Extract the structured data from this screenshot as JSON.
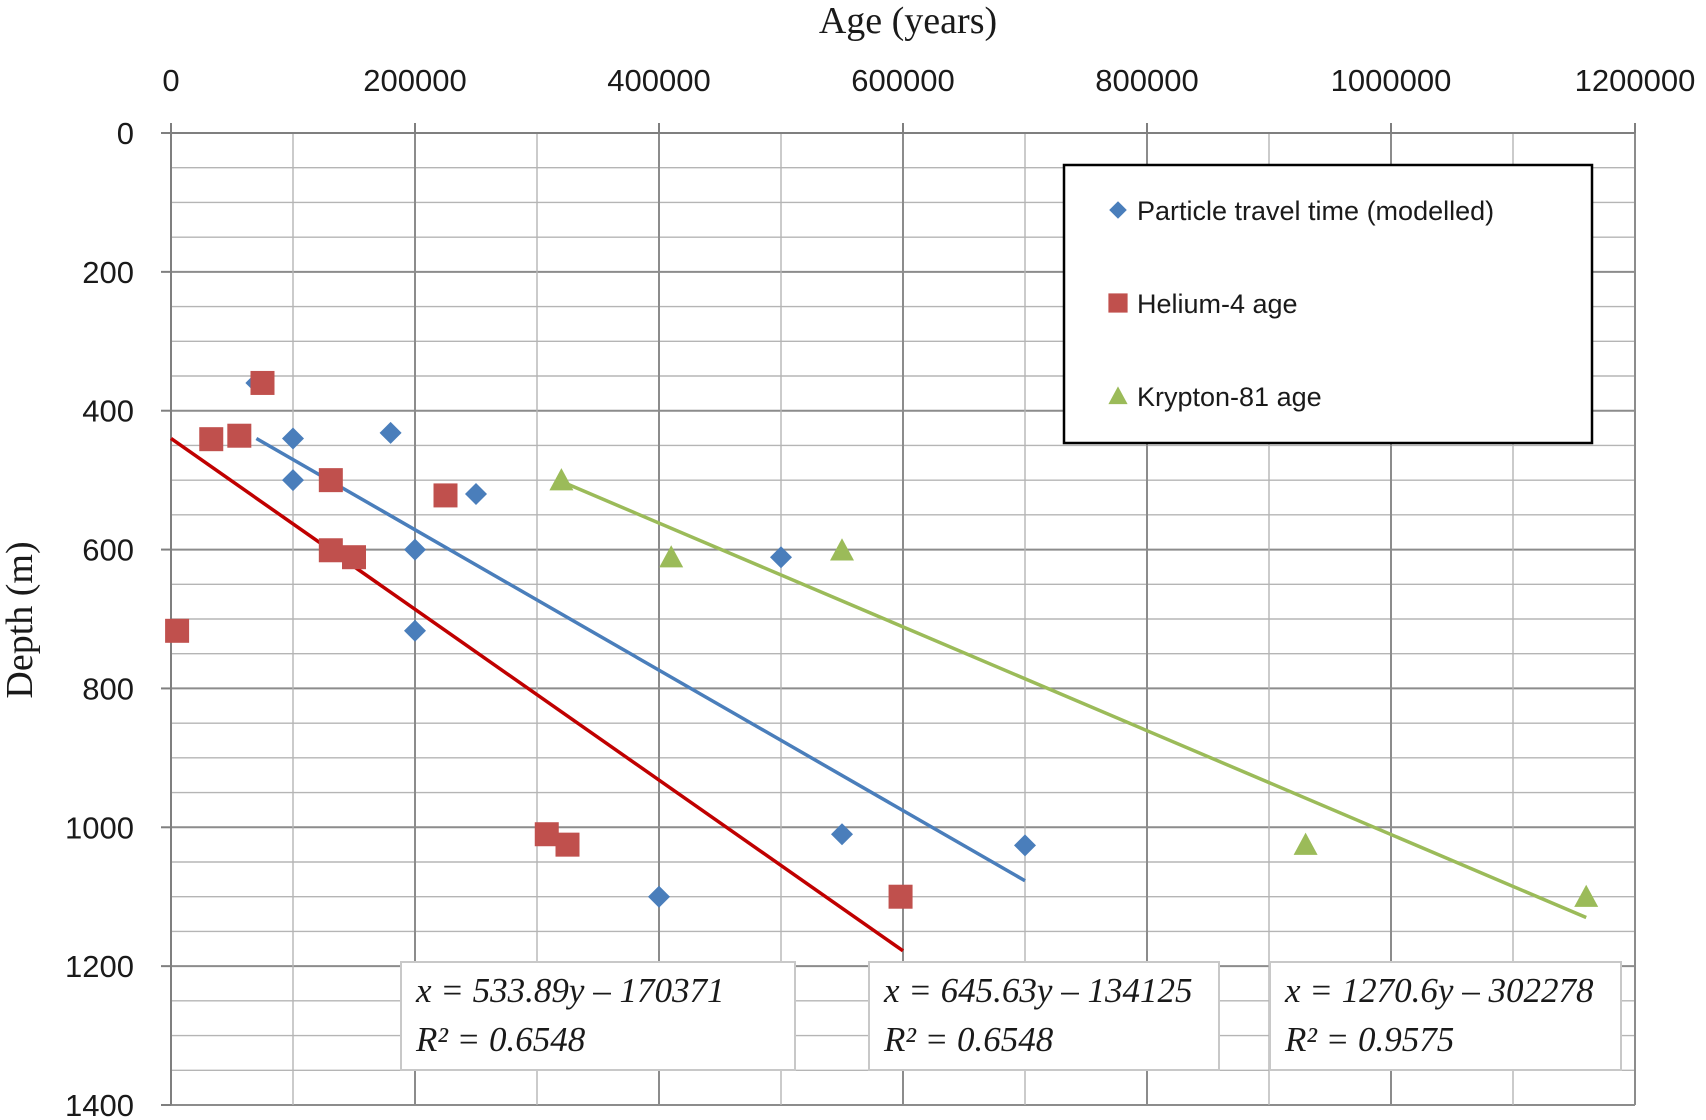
{
  "chart_data": {
    "type": "scatter",
    "xlabel": "Age (years)",
    "ylabel": "Depth (m)",
    "xlim": [
      0,
      1200000
    ],
    "ylim": [
      0,
      1400
    ],
    "y_inverted": true,
    "x_axis_position": "top",
    "x_ticks": [
      "0",
      "200000",
      "400000",
      "600000",
      "800000",
      "1000000",
      "1200000"
    ],
    "y_ticks": [
      "0",
      "200",
      "400",
      "600",
      "800",
      "1000",
      "1200",
      "1400"
    ],
    "grid": true,
    "legend_position": "top-right",
    "series": [
      {
        "name": "Particle travel time (modelled)",
        "marker": "diamond",
        "color": "#4a7ebb",
        "points": [
          [
            70000,
            360
          ],
          [
            100000,
            440
          ],
          [
            100000,
            500
          ],
          [
            180000,
            432
          ],
          [
            250000,
            520
          ],
          [
            200000,
            600
          ],
          [
            200000,
            717
          ],
          [
            500000,
            611
          ],
          [
            550000,
            1010
          ],
          [
            700000,
            1026
          ],
          [
            400000,
            1100
          ]
        ],
        "trend": {
          "x": [
            70000,
            700000
          ],
          "y": [
            440,
            1077
          ],
          "color": "#4a7ebb"
        }
      },
      {
        "name": "Helium-4 age",
        "marker": "square",
        "color": "#c0504d",
        "points": [
          [
            75000,
            360
          ],
          [
            33000,
            441
          ],
          [
            56000,
            436
          ],
          [
            131000,
            500
          ],
          [
            225000,
            522
          ],
          [
            131000,
            601
          ],
          [
            150000,
            611
          ],
          [
            5000,
            717
          ],
          [
            308000,
            1010
          ],
          [
            325000,
            1025
          ],
          [
            598000,
            1100
          ]
        ],
        "trend": {
          "x": [
            0,
            600000
          ],
          "y": [
            440,
            1178
          ],
          "color": "#c00000"
        }
      },
      {
        "name": "Krypton-81 age",
        "marker": "triangle",
        "color": "#9bbb59",
        "points": [
          [
            320000,
            500
          ],
          [
            410000,
            611
          ],
          [
            550000,
            601
          ],
          [
            930000,
            1025
          ],
          [
            1160000,
            1100
          ]
        ],
        "trend": {
          "x": [
            320000,
            1160000
          ],
          "y": [
            502,
            1130
          ],
          "color": "#9bbb59"
        }
      }
    ],
    "equations": [
      {
        "line1": "x = 533.89y – 170371",
        "line2": "R² = 0.6548"
      },
      {
        "line1": "x = 645.63y – 134125",
        "line2": "R² = 0.6548"
      },
      {
        "line1": "x = 1270.6y – 302278",
        "line2": "R² = 0.9575"
      }
    ]
  }
}
